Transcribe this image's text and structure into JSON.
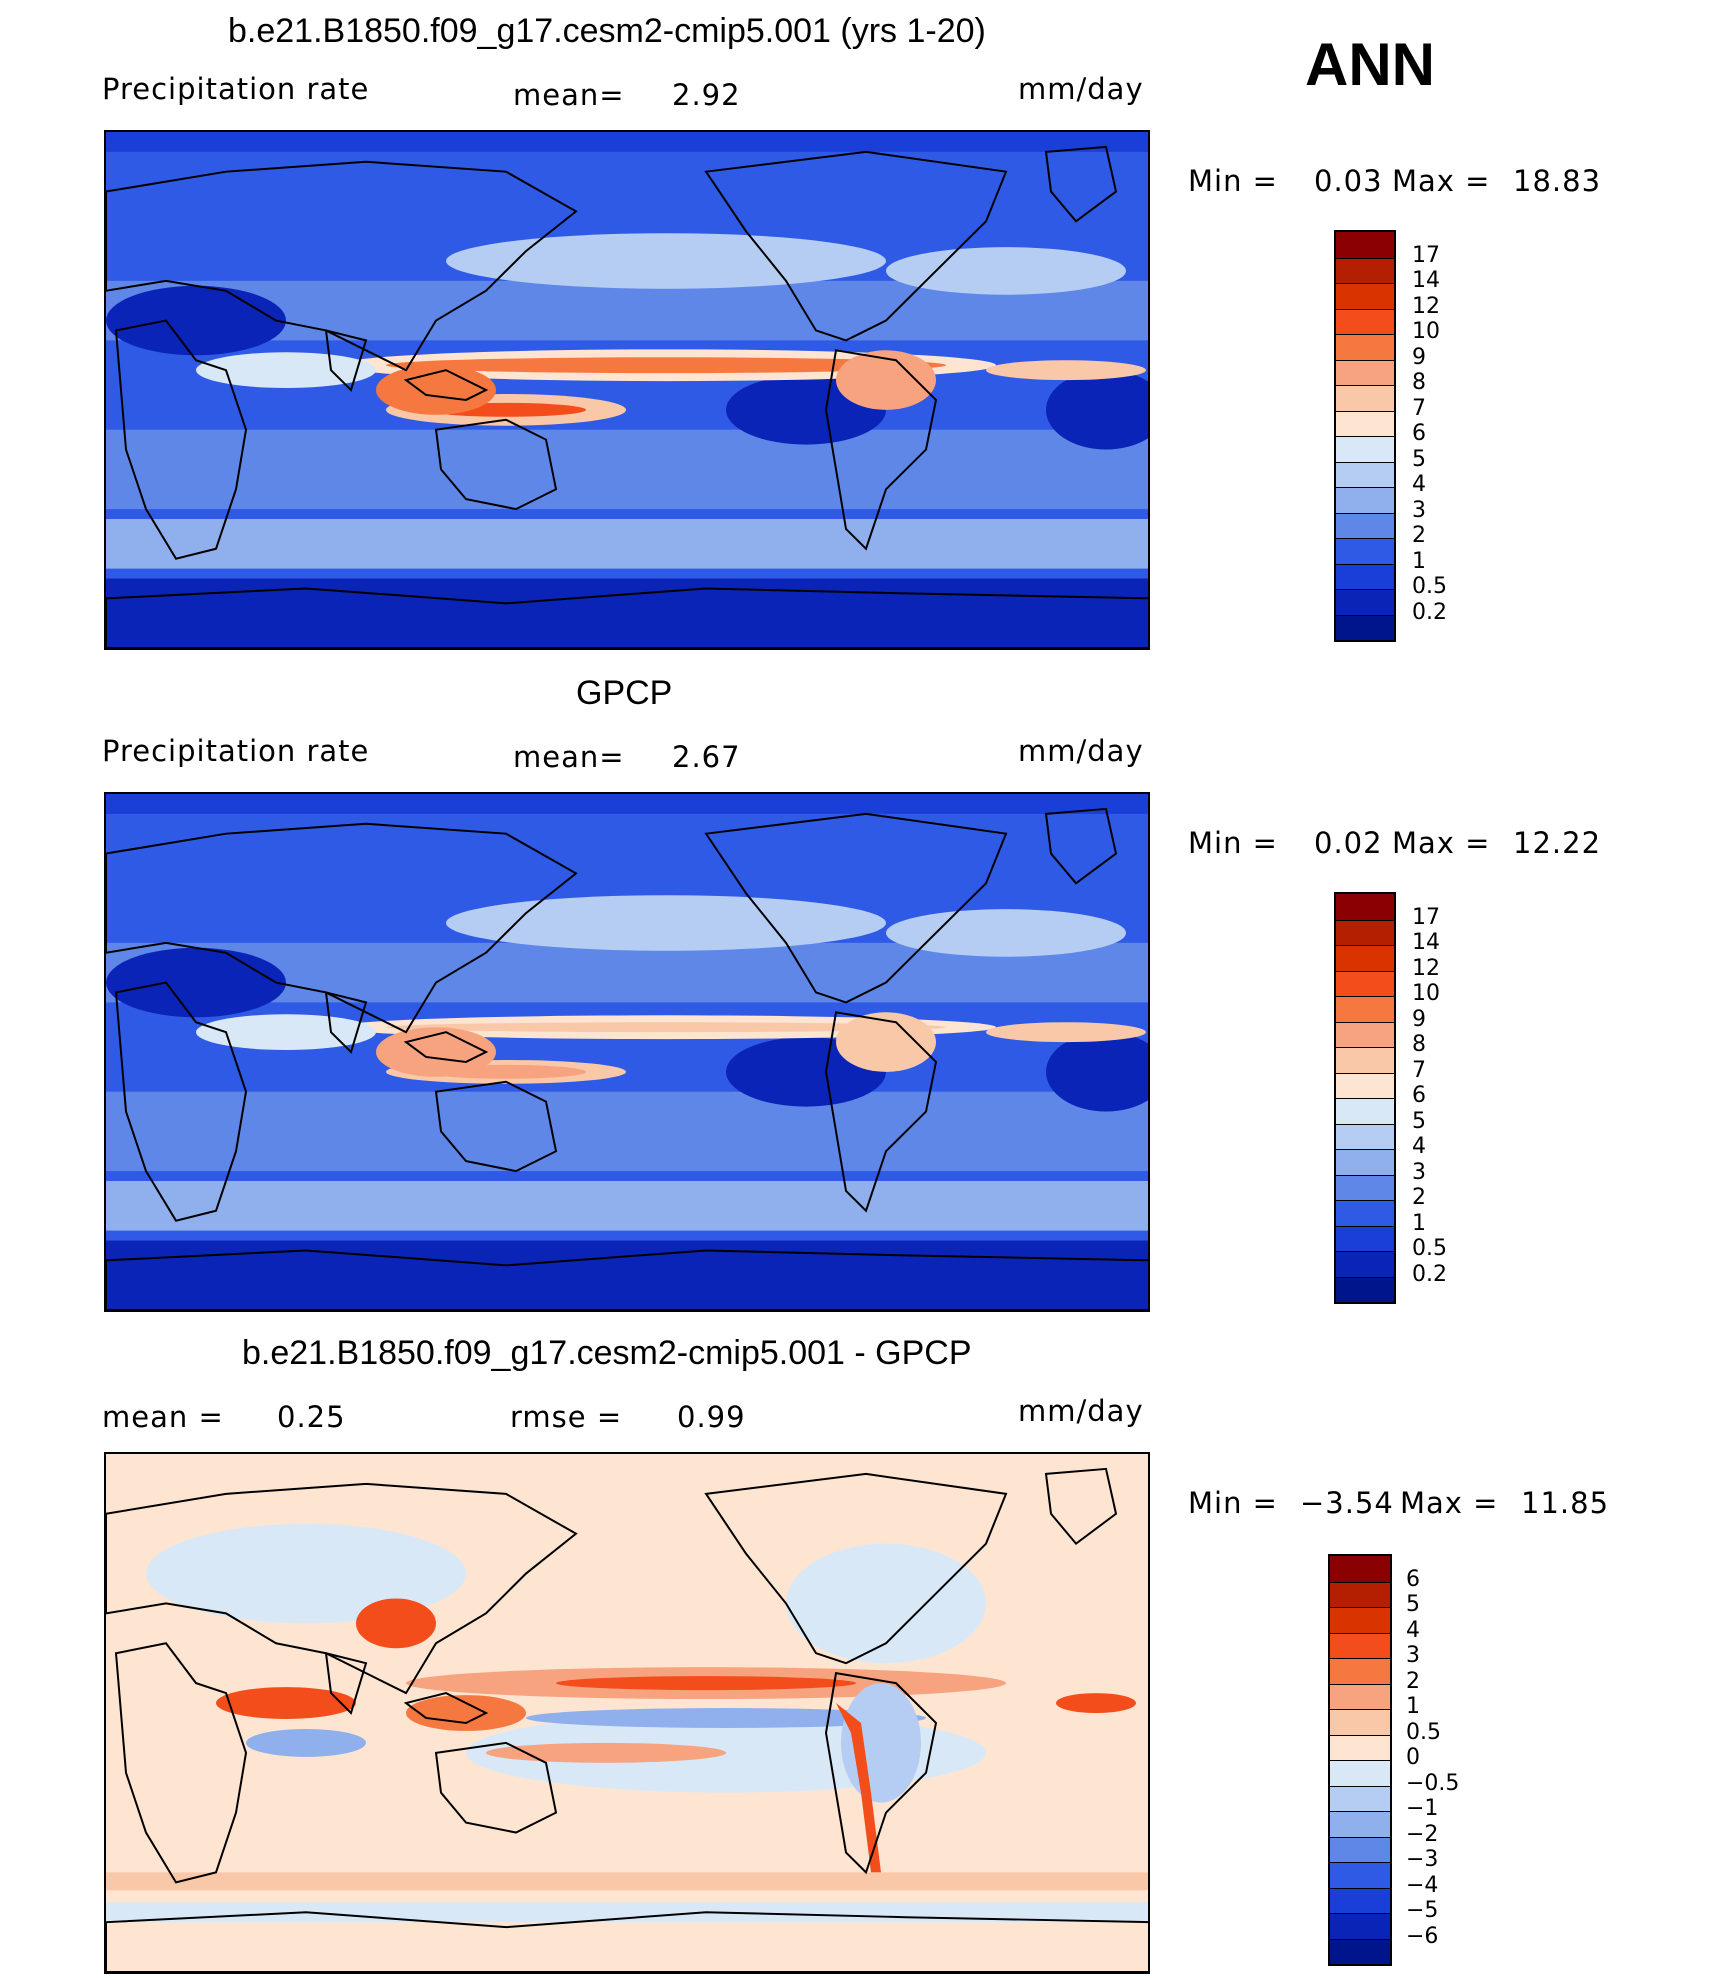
{
  "header": {
    "season": "ANN"
  },
  "panels": [
    {
      "title": "b.e21.B1850.f09_g17.cesm2-cmip5.001 (yrs 1-20)",
      "left_label": "Precipitation  rate",
      "mid_label": "mean=",
      "mid_value": "2.92",
      "right_label": "mm/day",
      "min_label": "Min  =",
      "min_value": "0.03",
      "max_label": "Max  =",
      "max_value": "18.83"
    },
    {
      "title": "GPCP",
      "left_label": "Precipitation  rate",
      "mid_label": "mean=",
      "mid_value": "2.67",
      "right_label": "mm/day",
      "min_label": "Min  =",
      "min_value": "0.02",
      "max_label": "Max  =",
      "max_value": "12.22"
    },
    {
      "title": "b.e21.B1850.f09_g17.cesm2-cmip5.001 - GPCP",
      "left_label": "mean  =",
      "left_value": "0.25",
      "mid_label": "rmse  =",
      "mid_value": "0.99",
      "right_label": "mm/day",
      "min_label": "Min  =",
      "min_value": "−3.54",
      "max_label": "Max  =",
      "max_value": "11.85"
    }
  ],
  "chart_data": [
    {
      "type": "heatmap",
      "title": "b.e21.B1850.f09_g17.cesm2-cmip5.001 (yrs 1-20)",
      "variable": "Precipitation rate",
      "units": "mm/day",
      "mean": 2.92,
      "min": 0.03,
      "max": 18.83,
      "colorbar_levels": [
        "17",
        "14",
        "12",
        "10",
        "9",
        "8",
        "7",
        "6",
        "5",
        "4",
        "3",
        "2",
        "1",
        "0.5",
        "0.2"
      ],
      "colorbar_colors": [
        "#8b0000",
        "#b31f00",
        "#d93300",
        "#f24d1a",
        "#f57840",
        "#f7a380",
        "#f9c8a8",
        "#fde5d2",
        "#d9e8f7",
        "#b5cdf2",
        "#8fb0ed",
        "#5f87e8",
        "#2f5ae6",
        "#1a3fd9",
        "#0a24b8",
        "#00148c"
      ]
    },
    {
      "type": "heatmap",
      "title": "GPCP",
      "variable": "Precipitation rate",
      "units": "mm/day",
      "mean": 2.67,
      "min": 0.02,
      "max": 12.22,
      "colorbar_levels": [
        "17",
        "14",
        "12",
        "10",
        "9",
        "8",
        "7",
        "6",
        "5",
        "4",
        "3",
        "2",
        "1",
        "0.5",
        "0.2"
      ],
      "colorbar_colors": [
        "#8b0000",
        "#b31f00",
        "#d93300",
        "#f24d1a",
        "#f57840",
        "#f7a380",
        "#f9c8a8",
        "#fde5d2",
        "#d9e8f7",
        "#b5cdf2",
        "#8fb0ed",
        "#5f87e8",
        "#2f5ae6",
        "#1a3fd9",
        "#0a24b8",
        "#00148c"
      ]
    },
    {
      "type": "heatmap",
      "title": "b.e21.B1850.f09_g17.cesm2-cmip5.001 - GPCP",
      "units": "mm/day",
      "mean": 0.25,
      "rmse": 0.99,
      "min": -3.54,
      "max": 11.85,
      "colorbar_levels": [
        "6",
        "5",
        "4",
        "3",
        "2",
        "1",
        "0.5",
        "0",
        "−0.5",
        "−1",
        "−2",
        "−3",
        "−4",
        "−5",
        "−6"
      ],
      "colorbar_colors": [
        "#8b0000",
        "#b31f00",
        "#d93300",
        "#f24d1a",
        "#f57840",
        "#f7a380",
        "#f9c8a8",
        "#fde5d2",
        "#d9e8f7",
        "#b5cdf2",
        "#8fb0ed",
        "#5f87e8",
        "#2f5ae6",
        "#1a3fd9",
        "#0a24b8",
        "#00148c"
      ]
    }
  ]
}
